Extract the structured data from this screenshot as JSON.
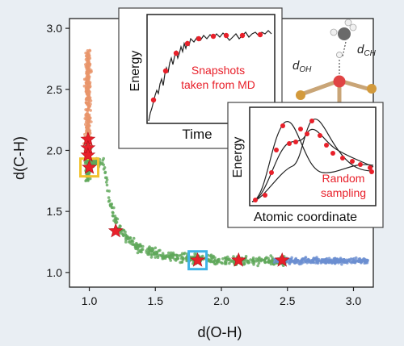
{
  "chart_data": {
    "type": "scatter",
    "xlabel": "d(O-H)",
    "ylabel": "d(C-H)",
    "xlim": [
      0.85,
      3.15
    ],
    "ylim": [
      0.88,
      3.08
    ],
    "x_ticks": [
      "1.0",
      "1.5",
      "2.0",
      "2.5",
      "3.0"
    ],
    "y_ticks": [
      "1.0",
      "1.5",
      "2.0",
      "2.5",
      "3.0"
    ],
    "grid": false,
    "series": [
      {
        "color": "#e8956a",
        "region": "orange cluster",
        "x_range": [
          0.94,
          1.04
        ],
        "y_range": [
          1.95,
          2.82
        ]
      },
      {
        "color": "#5fa85a",
        "region": "green curve",
        "x_range": [
          0.96,
          2.5
        ],
        "y_range": [
          1.06,
          1.95
        ]
      },
      {
        "color": "#6b8fd1",
        "region": "blue cluster",
        "x_range": [
          2.4,
          3.12
        ],
        "y_range": [
          1.05,
          1.14
        ]
      }
    ],
    "stars": {
      "color": "#e8202a",
      "points": [
        {
          "x": 0.99,
          "y": 2.09
        },
        {
          "x": 0.99,
          "y": 2.02
        },
        {
          "x": 0.99,
          "y": 1.96
        },
        {
          "x": 1.0,
          "y": 1.86
        },
        {
          "x": 1.2,
          "y": 1.34
        },
        {
          "x": 1.82,
          "y": 1.1
        },
        {
          "x": 2.13,
          "y": 1.1
        },
        {
          "x": 2.46,
          "y": 1.1
        }
      ]
    },
    "highlights": [
      {
        "x": 1.0,
        "y": 1.86,
        "color": "#f2c230"
      },
      {
        "x": 1.82,
        "y": 1.1,
        "color": "#3fb3e6"
      }
    ]
  },
  "inset_md": {
    "ylabel": "Energy",
    "xlabel": "Time",
    "caption_line1": "Snapshots",
    "caption_line2": "taken from MD",
    "caption_color": "#e8202a"
  },
  "inset_random": {
    "ylabel": "Energy",
    "xlabel": "Atomic coordinate",
    "caption_line1": "Random",
    "caption_line2": "sampling",
    "caption_color": "#e8202a"
  },
  "molecule": {
    "label_oh": "d",
    "sub_oh": "OH",
    "label_ch": "d",
    "sub_ch": "CH"
  }
}
